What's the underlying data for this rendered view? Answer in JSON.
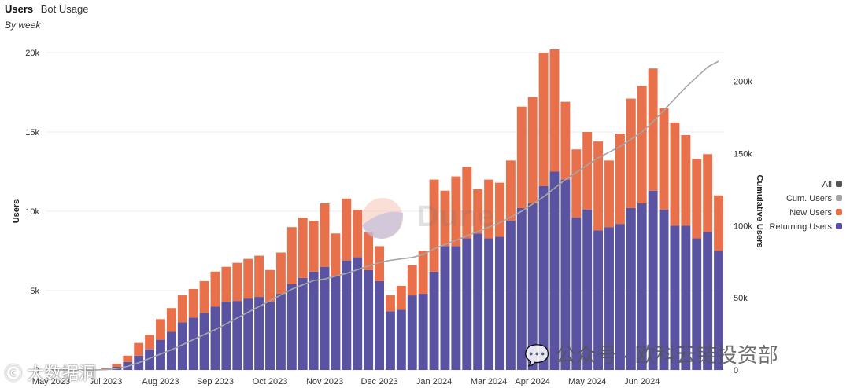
{
  "header": {
    "title": "Users",
    "subtitle_tab": "Bot Usage",
    "period": "By week"
  },
  "watermarks": {
    "dune": "Dune",
    "wechat": "公众号 · 欧科云链投资部",
    "left": "大数据洞"
  },
  "colors": {
    "returning": "#5a53a1",
    "new": "#e8704a",
    "cumulative": "#a6a6a6",
    "all": "#555555",
    "grid": "#ececec"
  },
  "chart_data": {
    "type": "bar",
    "stacked": true,
    "title": "Users",
    "ylabel": "Users",
    "y2label": "Cumulative Users",
    "ylim": [
      0,
      20000
    ],
    "y2lim": [
      0,
      220000
    ],
    "yticks": [
      0,
      5000,
      10000,
      15000,
      20000
    ],
    "yticklabels": [
      "0",
      "5k",
      "10k",
      "15k",
      "20k"
    ],
    "y2ticks": [
      0,
      50000,
      100000,
      150000,
      200000
    ],
    "y2ticklabels": [
      "0",
      "50k",
      "100k",
      "150k",
      "200k"
    ],
    "xticklabels": [
      "May 2023",
      "Jul 2023",
      "Aug 2023",
      "Sep 2023",
      "Oct 2023",
      "Nov 2023",
      "Dec 2023",
      "Jan 2024",
      "Mar 2024",
      "Apr 2024",
      "May 2024",
      "Jun 2024"
    ],
    "xtick_weeks": [
      0,
      5,
      10,
      15,
      20,
      25,
      30,
      35,
      40,
      44,
      49,
      54
    ],
    "legend": [
      "All",
      "Cum. Users",
      "New Users",
      "Returning Users"
    ],
    "legend_position": "right",
    "series": [
      {
        "name": "Returning Users",
        "values": [
          0,
          0,
          0,
          0,
          0,
          50,
          200,
          500,
          900,
          1300,
          1900,
          2400,
          3000,
          3300,
          3600,
          4000,
          4300,
          4350,
          4500,
          4600,
          4300,
          4800,
          5400,
          5800,
          6200,
          6500,
          5900,
          6900,
          7100,
          6300,
          5600,
          3700,
          3800,
          4700,
          4800,
          6200,
          7800,
          7800,
          8300,
          8600,
          8300,
          8400,
          9400,
          10200,
          10500,
          11600,
          12500,
          12000,
          9600,
          10100,
          8800,
          9000,
          9200,
          10200,
          10500,
          11300,
          10100,
          9100,
          9100,
          8300,
          8700,
          7500
        ]
      },
      {
        "name": "New Users",
        "values": [
          0,
          0,
          0,
          0,
          0,
          50,
          200,
          400,
          800,
          900,
          1300,
          1500,
          1700,
          1800,
          2000,
          2200,
          2200,
          2400,
          2500,
          2600,
          2000,
          2600,
          3600,
          3800,
          3200,
          4000,
          2700,
          3900,
          3000,
          2400,
          2200,
          1000,
          1500,
          1900,
          2700,
          5800,
          3500,
          4400,
          4500,
          2800,
          3700,
          3400,
          3800,
          6400,
          6700,
          8400,
          7700,
          4900,
          4300,
          4900,
          5600,
          4200,
          5700,
          6900,
          7400,
          7700,
          6400,
          6500,
          5700,
          5000,
          4900,
          3500
        ]
      }
    ],
    "cumulative": [
      0,
      0,
      0,
      0,
      0,
      200,
      1000,
      2500,
      5000,
      8000,
      11000,
      14000,
      17500,
      21000,
      24500,
      28000,
      32000,
      36000,
      40000,
      44000,
      48000,
      52000,
      56000,
      59000,
      62000,
      63000,
      65000,
      67000,
      69500,
      72000,
      74500,
      76000,
      77000,
      78000,
      80000,
      84000,
      87000,
      90000,
      93000,
      96000,
      99000,
      102000,
      106000,
      110000,
      115000,
      120000,
      126000,
      132000,
      137000,
      142000,
      147000,
      151000,
      155000,
      160000,
      165000,
      172000,
      180000,
      188000,
      196000,
      203000,
      210000,
      214000
    ]
  }
}
